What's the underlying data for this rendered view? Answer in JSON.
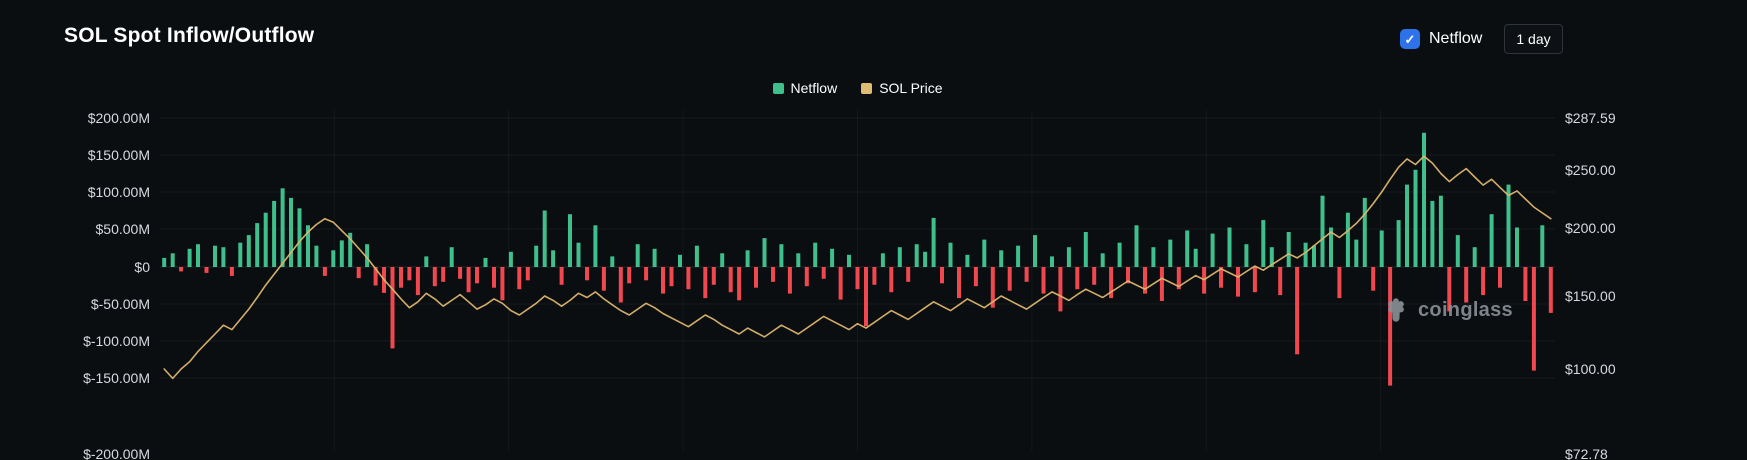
{
  "header": {
    "title": "SOL Spot Inflow/Outflow",
    "netflow_label": "Netflow",
    "netflow_checked": true,
    "interval": "1 day"
  },
  "legend": [
    {
      "label": "Netflow",
      "color": "#3FBF8C"
    },
    {
      "label": "SOL Price",
      "color": "#E0BC72"
    }
  ],
  "watermark": {
    "text": "coinglass"
  },
  "colors": {
    "background": "#0b0e11",
    "accent_blue": "#2D72E8",
    "netflow_green": "#3FBF8C",
    "outflow_red": "#F1484F",
    "price_gold": "#DDB670",
    "axis_text": "#D6D9DE",
    "watermark_gray": "#8B9098"
  },
  "chart_data": {
    "type": "bar",
    "title": "SOL Spot Inflow/Outflow",
    "interval": "1 day",
    "grid": true,
    "legend_position": "top-center",
    "left_axis": {
      "unit": "USD millions",
      "ticks": [
        200,
        150,
        100,
        50,
        0,
        -50,
        -100,
        -150,
        -200
      ],
      "labels": [
        "$200.00M",
        "$150.00M",
        "$100.00M",
        "$50.00M",
        "$0",
        "$-50.00M",
        "$-100.00M",
        "$-150.00M",
        "$-200.00M"
      ]
    },
    "right_axis": {
      "unit": "USD",
      "ticks": [
        287.59,
        250,
        200,
        150,
        100,
        72.78
      ],
      "labels": [
        "$287.59",
        "$250.00",
        "$200.00",
        "$150.00",
        "$100.00",
        "$72.78"
      ]
    },
    "series": [
      {
        "name": "Netflow",
        "type": "bar",
        "axis": "left",
        "unit": "USD millions",
        "color": "#3FBF8C",
        "negative_color": "#F1484F",
        "values": [
          12,
          18,
          -6,
          24,
          30,
          -8,
          28,
          26,
          -12,
          32,
          42,
          58,
          72,
          88,
          105,
          92,
          78,
          55,
          28,
          -12,
          22,
          35,
          45,
          -15,
          30,
          -25,
          -35,
          -110,
          -28,
          -18,
          -38,
          14,
          -26,
          -20,
          26,
          -16,
          -34,
          -22,
          12,
          -28,
          -45,
          20,
          -30,
          -18,
          28,
          75,
          22,
          -24,
          70,
          32,
          -18,
          55,
          -32,
          14,
          -48,
          -22,
          30,
          -18,
          24,
          -36,
          -26,
          16,
          -30,
          28,
          -42,
          -24,
          18,
          -34,
          -45,
          22,
          -28,
          38,
          -20,
          30,
          -36,
          18,
          -26,
          32,
          -16,
          24,
          -44,
          16,
          -30,
          -80,
          -24,
          18,
          -34,
          26,
          -20,
          30,
          20,
          65,
          -22,
          32,
          -42,
          16,
          -26,
          36,
          -55,
          22,
          -32,
          28,
          -20,
          42,
          -36,
          14,
          -60,
          26,
          -30,
          46,
          -24,
          18,
          -42,
          32,
          -22,
          55,
          -36,
          26,
          -46,
          36,
          -30,
          48,
          24,
          -36,
          44,
          -28,
          52,
          -40,
          30,
          -34,
          62,
          26,
          -38,
          46,
          -118,
          32,
          28,
          95,
          52,
          -42,
          72,
          36,
          92,
          -32,
          48,
          -155,
          62,
          110,
          130,
          180,
          88,
          95,
          -60,
          42,
          -48,
          26,
          -38,
          70,
          -28,
          110,
          52,
          -46,
          -140,
          55,
          -62
        ]
      },
      {
        "name": "SOL Price",
        "type": "line",
        "axis": "right",
        "unit": "USD",
        "color": "#DDB670",
        "values": [
          100,
          97,
          100,
          105,
          112,
          118,
          124,
          130,
          127,
          134,
          141,
          149,
          158,
          166,
          174,
          182,
          190,
          197,
          203,
          208,
          205,
          198,
          192,
          185,
          178,
          170,
          162,
          155,
          148,
          142,
          146,
          152,
          148,
          143,
          147,
          151,
          146,
          141,
          144,
          148,
          145,
          140,
          137,
          141,
          145,
          150,
          147,
          143,
          147,
          152,
          149,
          153,
          148,
          144,
          140,
          137,
          141,
          145,
          142,
          138,
          135,
          132,
          129,
          133,
          137,
          134,
          130,
          127,
          124,
          128,
          125,
          122,
          126,
          130,
          127,
          124,
          128,
          132,
          136,
          133,
          130,
          127,
          131,
          128,
          132,
          136,
          140,
          137,
          134,
          138,
          142,
          146,
          143,
          140,
          144,
          148,
          145,
          142,
          146,
          150,
          147,
          144,
          141,
          145,
          149,
          153,
          150,
          147,
          151,
          155,
          152,
          149,
          153,
          157,
          161,
          158,
          155,
          159,
          163,
          160,
          157,
          161,
          165,
          162,
          166,
          170,
          167,
          164,
          168,
          172,
          169,
          173,
          177,
          181,
          178,
          182,
          187,
          192,
          197,
          193,
          198,
          204,
          212,
          221,
          231,
          242,
          252,
          258,
          254,
          260,
          255,
          247,
          240,
          246,
          251,
          244,
          237,
          242,
          235,
          228,
          232,
          225,
          218,
          213,
          208
        ]
      }
    ]
  }
}
